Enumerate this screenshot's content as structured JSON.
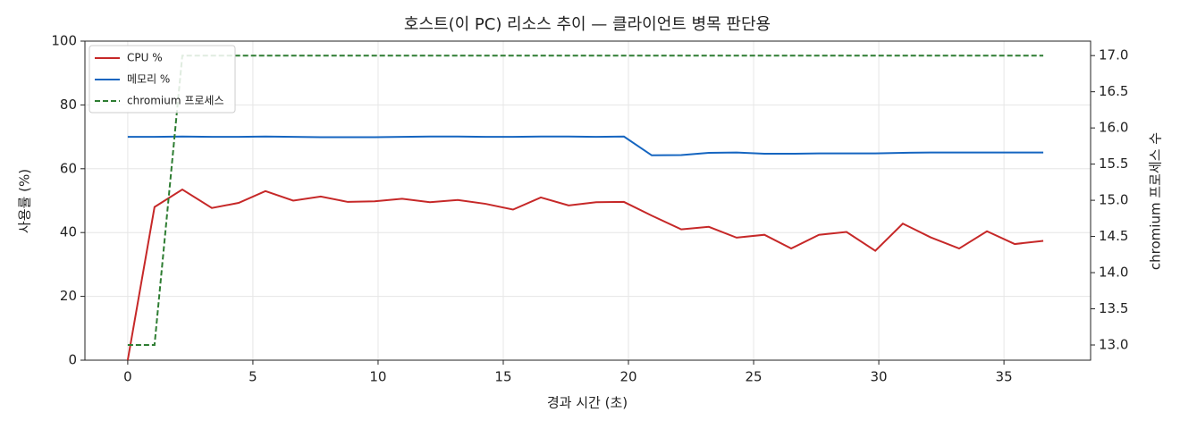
{
  "chart_data": {
    "type": "line",
    "title": "호스트(이 PC) 리소스 추이 — 클라이언트 병목 판단용",
    "xlabel": "경과 시간 (초)",
    "ylabel": "사용률 (%)",
    "y2label": "chromium 프로세스 수",
    "x": [
      0,
      1.07,
      2.18,
      3.36,
      4.43,
      5.5,
      6.61,
      7.71,
      8.79,
      9.86,
      10.96,
      12.07,
      13.18,
      14.29,
      15.39,
      16.5,
      17.61,
      18.71,
      19.82,
      20.93,
      22.11,
      23.21,
      24.32,
      25.43,
      26.5,
      27.61,
      28.71,
      29.86,
      30.96,
      32.07,
      33.21,
      34.32,
      35.43,
      36.57
    ],
    "series": [
      {
        "name": "CPU %",
        "color": "#c62828",
        "linestyle": "solid",
        "values": [
          0,
          48,
          53.5,
          47.7,
          49.3,
          53,
          50,
          51.3,
          49.6,
          49.8,
          50.6,
          49.5,
          50.2,
          49,
          47.2,
          51,
          48.5,
          49.5,
          49.6,
          45.3,
          41,
          41.8,
          38.4,
          39.3,
          35,
          39.3,
          40.2,
          34.3,
          42.8,
          38.5,
          35,
          40.4,
          36.4,
          37.4
        ]
      },
      {
        "name": "메모리 %",
        "color": "#1565c0",
        "linestyle": "solid",
        "values": [
          70,
          70,
          70.1,
          70,
          70,
          70.1,
          70,
          69.9,
          69.9,
          69.9,
          70,
          70.1,
          70.1,
          70,
          70,
          70.1,
          70.1,
          70,
          70.1,
          64.2,
          64.3,
          65,
          65.1,
          64.7,
          64.7,
          64.8,
          64.8,
          64.8,
          65,
          65.1,
          65.1,
          65.1,
          65.1,
          65.1
        ]
      },
      {
        "name": "chromium 프로세스",
        "color": "#2e7d32",
        "linestyle": "dashed",
        "axis": "y2",
        "values": [
          13,
          13,
          17,
          17,
          17,
          17,
          17,
          17,
          17,
          17,
          17,
          17,
          17,
          17,
          17,
          17,
          17,
          17,
          17,
          17,
          17,
          17,
          17,
          17,
          17,
          17,
          17,
          17,
          17,
          17,
          17,
          17,
          17,
          17
        ]
      }
    ],
    "xlim": [
      -1.71,
      38.46
    ],
    "xticks": [
      0,
      5,
      10,
      15,
      20,
      25,
      30,
      35
    ],
    "ylim": [
      0,
      100
    ],
    "yticks": [
      0,
      20,
      40,
      60,
      80,
      100
    ],
    "y2lim": [
      12.79,
      17.2
    ],
    "y2ticks": [
      {
        "value": 13,
        "label": "13.0"
      },
      {
        "value": 13.5,
        "label": "13.5"
      },
      {
        "value": 14,
        "label": "14.0"
      },
      {
        "value": 14.5,
        "label": "14.5"
      },
      {
        "value": 15,
        "label": "15.0"
      },
      {
        "value": 15.5,
        "label": "15.5"
      },
      {
        "value": 16,
        "label": "16.0"
      },
      {
        "value": 16.5,
        "label": "16.5"
      },
      {
        "value": 17,
        "label": "17.0"
      }
    ],
    "grid": true,
    "legend": "upper-left"
  }
}
